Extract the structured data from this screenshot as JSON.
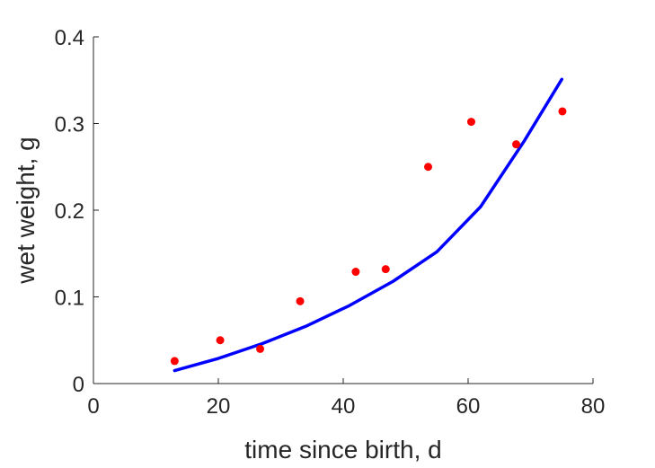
{
  "chart_data": {
    "type": "scatter",
    "title": "",
    "xlabel": "time since birth, d",
    "ylabel": "wet weight, g",
    "xlim": [
      0,
      80
    ],
    "ylim": [
      0,
      0.4
    ],
    "xticks": [
      0,
      20,
      40,
      60,
      80
    ],
    "yticks": [
      0,
      0.1,
      0.2,
      0.3,
      0.4
    ],
    "xtick_labels": [
      "0",
      "20",
      "40",
      "60",
      "80"
    ],
    "ytick_labels": [
      "0",
      "0.1",
      "0.2",
      "0.3",
      "0.4"
    ],
    "grid": false,
    "legend": "none",
    "series": [
      {
        "kind": "points",
        "color": "#ff0000",
        "x": [
          13,
          20.3,
          26.7,
          33.1,
          42,
          46.8,
          53.6,
          60.5,
          67.7,
          75.1
        ],
        "y": [
          0.026,
          0.05,
          0.04,
          0.095,
          0.129,
          0.132,
          0.25,
          0.302,
          0.276,
          0.314
        ]
      },
      {
        "kind": "line",
        "color": "#0000ff",
        "x": [
          13,
          20,
          27,
          34,
          41,
          48,
          55,
          62,
          69,
          75
        ],
        "y": [
          0.015,
          0.029,
          0.046,
          0.066,
          0.09,
          0.118,
          0.152,
          0.204,
          0.28,
          0.351
        ]
      }
    ]
  }
}
